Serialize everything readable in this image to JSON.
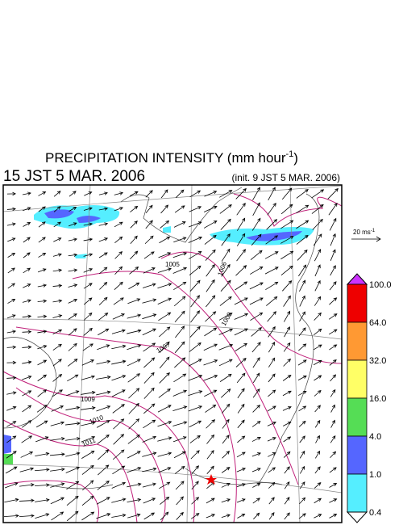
{
  "header": {
    "title": "PRECIPITATION INTENSITY (mm hour",
    "title_exponent": "-1",
    "title_close": ")",
    "valid_time": "15 JST 5 MAR. 2006",
    "init_time": "(init. 9 JST 5 MAR. 2006)"
  },
  "wind_reference": {
    "label": "20 ms",
    "exponent": "-1"
  },
  "isobars": [
    "1005",
    "1006",
    "1008",
    "1007",
    "1009",
    "1010",
    "1011"
  ],
  "colorbar": {
    "labels": [
      "100.0",
      "64.0",
      "32.0",
      "16.0",
      "4.0",
      "1.0",
      "0.4"
    ],
    "colors": [
      "#ee0000",
      "#ff9933",
      "#ffff66",
      "#55dd55",
      "#5566ff",
      "#55eeff"
    ],
    "over_color": "#cc33ff",
    "under_color": "#ffffff"
  }
}
